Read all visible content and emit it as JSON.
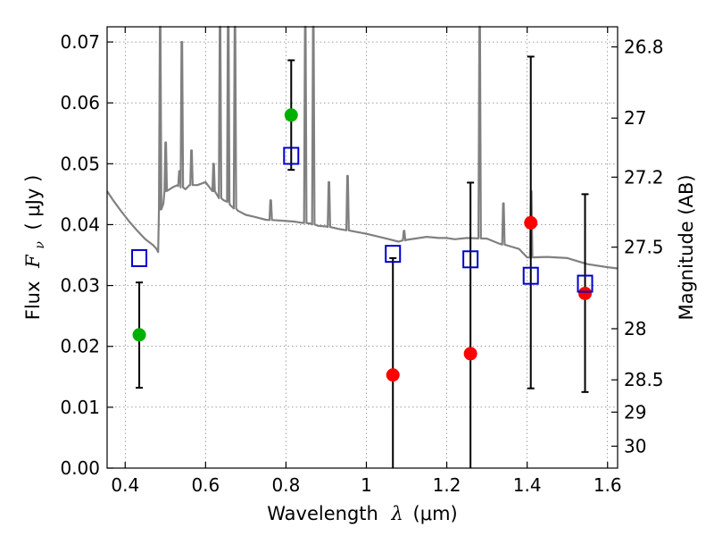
{
  "chart_data": {
    "type": "scatter",
    "title": "",
    "xlabel_main": "Wavelength",
    "xlabel_symbol": "λ",
    "xlabel_unit": "(μm)",
    "ylabel_main": "Flux",
    "ylabel_symbol": "F",
    "ylabel_subscript": "ν",
    "ylabel_unit": "( μJy )",
    "y2label": "Magnitude (AB)",
    "xlim": [
      0.355,
      1.625
    ],
    "ylim": [
      0.0,
      0.0725
    ],
    "grid": true,
    "xticks": [
      0.4,
      0.6,
      0.8,
      1.0,
      1.2,
      1.4,
      1.6
    ],
    "xtick_labels": [
      "0.4",
      "0.6",
      "0.8",
      "1",
      "1.2",
      "1.4",
      "1.6"
    ],
    "yticks": [
      0.0,
      0.01,
      0.02,
      0.03,
      0.04,
      0.05,
      0.06,
      0.07
    ],
    "ytick_labels": [
      "0.00",
      "0.01",
      "0.02",
      "0.03",
      "0.04",
      "0.05",
      "0.06",
      "0.07"
    ],
    "y2ticks": [
      {
        "label": "26.8",
        "flux": 0.0692
      },
      {
        "label": "27",
        "flux": 0.0575
      },
      {
        "label": "27.2",
        "flux": 0.0478
      },
      {
        "label": "27.5",
        "flux": 0.0363
      },
      {
        "label": "28",
        "flux": 0.0229
      },
      {
        "label": "28.5",
        "flux": 0.0145
      },
      {
        "label": "29",
        "flux": 0.0092
      },
      {
        "label": "30",
        "flux": 0.0036
      }
    ],
    "colors": {
      "detected": "#00b000",
      "upper": "#ff0000",
      "model": "#0000cc",
      "spectrum": "#808080",
      "errorbar": "#000000"
    },
    "series": [
      {
        "kind": "observed_detected",
        "x": [
          0.435,
          0.813
        ],
        "y": [
          0.0219,
          0.058
        ],
        "yerr_low": [
          0.0132,
          0.049
        ],
        "yerr_high": [
          0.0305,
          0.067
        ]
      },
      {
        "kind": "observed_low_snr",
        "x": [
          1.066,
          1.259,
          1.409,
          1.544
        ],
        "y": [
          0.0153,
          0.0188,
          0.0403,
          0.0287
        ],
        "yerr_low": [
          0.0,
          0.0,
          0.0131,
          0.0125
        ],
        "yerr_high": [
          0.0345,
          0.0469,
          0.0676,
          0.045
        ]
      },
      {
        "kind": "model_photometry",
        "x": [
          0.435,
          0.813,
          1.066,
          1.259,
          1.409,
          1.544
        ],
        "y": [
          0.0345,
          0.0513,
          0.0352,
          0.0343,
          0.0316,
          0.0303
        ]
      }
    ],
    "spectrum": {
      "x": [
        0.355,
        0.37,
        0.39,
        0.41,
        0.43,
        0.45,
        0.47,
        0.478,
        0.482,
        0.487,
        0.495,
        0.5,
        0.52,
        0.53,
        0.55,
        0.56,
        0.58,
        0.6,
        0.62,
        0.632,
        0.645,
        0.656,
        0.66,
        0.68,
        0.7,
        0.72,
        0.75,
        0.78,
        0.8,
        0.82,
        0.84,
        0.86,
        0.88,
        0.9,
        0.93,
        0.96,
        1.0,
        1.05,
        1.08,
        1.1,
        1.15,
        1.18,
        1.2,
        1.22,
        1.25,
        1.3,
        1.33,
        1.36,
        1.38,
        1.4,
        1.45,
        1.5,
        1.55,
        1.6,
        1.625
      ],
      "y": [
        0.0455,
        0.044,
        0.0422,
        0.0405,
        0.039,
        0.0376,
        0.0366,
        0.036,
        0.0355,
        0.0425,
        0.0435,
        0.0455,
        0.0462,
        0.0465,
        0.0458,
        0.0465,
        0.0465,
        0.047,
        0.0455,
        0.0445,
        0.044,
        0.0438,
        0.0433,
        0.0423,
        0.0416,
        0.0413,
        0.0408,
        0.0407,
        0.0406,
        0.0405,
        0.0403,
        0.0402,
        0.0398,
        0.0397,
        0.0393,
        0.039,
        0.0385,
        0.0377,
        0.0372,
        0.0375,
        0.038,
        0.0378,
        0.0378,
        0.0376,
        0.0378,
        0.0377,
        0.0369,
        0.0364,
        0.036,
        0.0346,
        0.0347,
        0.0345,
        0.0335,
        0.033,
        0.0328
      ],
      "lines": [
        {
          "x": 0.487,
          "peak": 0.0725
        },
        {
          "x": 0.5007,
          "peak": 0.0535
        },
        {
          "x": 0.535,
          "peak": 0.0488
        },
        {
          "x": 0.541,
          "peak": 0.07
        },
        {
          "x": 0.565,
          "peak": 0.0522
        },
        {
          "x": 0.62,
          "peak": 0.05
        },
        {
          "x": 0.636,
          "peak": 0.0725
        },
        {
          "x": 0.6563,
          "peak": 0.0725
        },
        {
          "x": 0.673,
          "peak": 0.0725
        },
        {
          "x": 0.762,
          "peak": 0.044
        },
        {
          "x": 0.848,
          "peak": 0.0725
        },
        {
          "x": 0.868,
          "peak": 0.0725
        },
        {
          "x": 0.9069,
          "peak": 0.047
        },
        {
          "x": 0.9532,
          "peak": 0.048
        },
        {
          "x": 1.0938,
          "peak": 0.039
        },
        {
          "x": 1.2818,
          "peak": 0.0725
        },
        {
          "x": 1.341,
          "peak": 0.0435
        },
        {
          "x": 1.41,
          "peak": 0.0455
        }
      ]
    }
  }
}
